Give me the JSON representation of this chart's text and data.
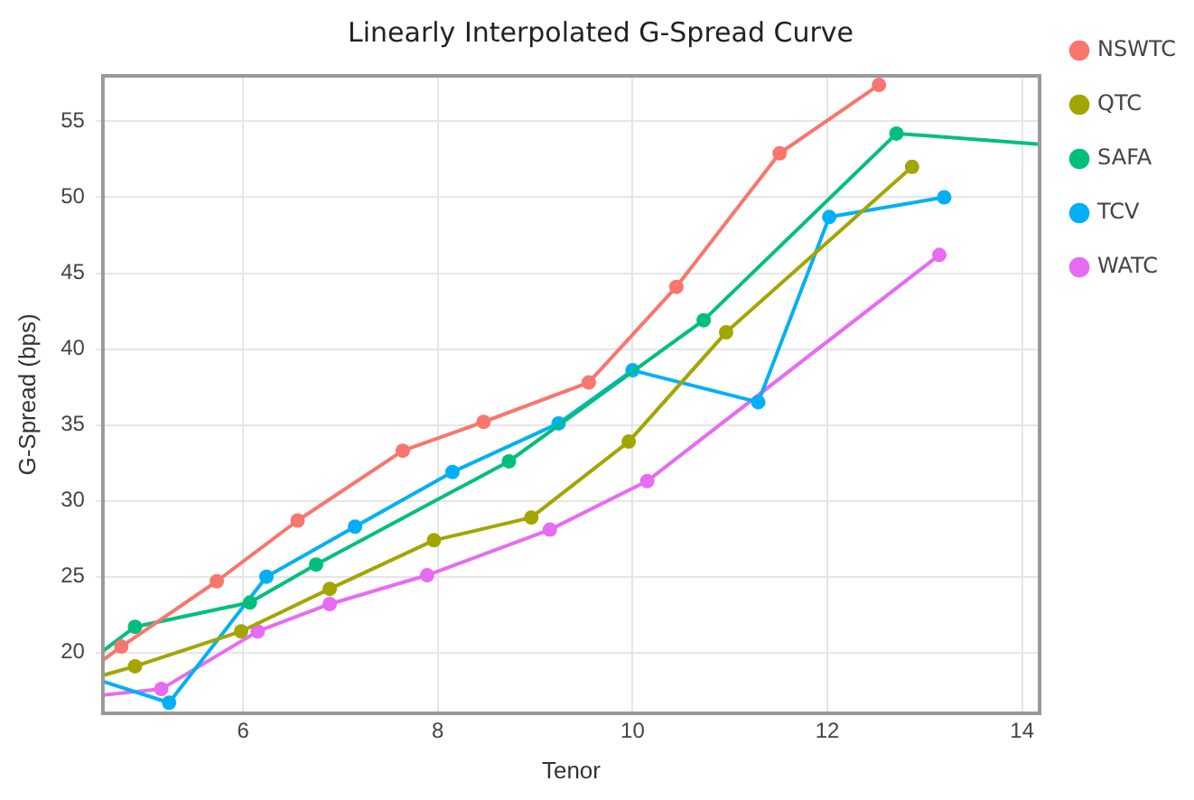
{
  "chart_data": {
    "type": "line",
    "title": "Linearly Interpolated G-Spread Curve",
    "xlabel": "Tenor",
    "ylabel": "G-Spread (bps)",
    "xlim": [
      4.56,
      14.18
    ],
    "xticks": [
      6,
      8,
      10,
      12,
      14
    ],
    "ylim": [
      16,
      58
    ],
    "yticks": [
      20,
      25,
      30,
      35,
      40,
      45,
      50,
      55
    ],
    "grid": true,
    "legend": "right",
    "marker": "circle",
    "series": [
      {
        "name": "NSWTC",
        "color": "#f8766d",
        "x": [
          4.56,
          4.75,
          5.73,
          6.56,
          7.64,
          8.47,
          9.55,
          10.45,
          11.51,
          12.53
        ],
        "values": [
          19.5,
          20.4,
          24.7,
          28.7,
          33.3,
          35.2,
          37.8,
          44.1,
          52.9,
          57.4
        ]
      },
      {
        "name": "QTC",
        "color": "#a3a500",
        "x": [
          4.56,
          4.89,
          5.98,
          6.89,
          7.96,
          8.96,
          9.96,
          10.96,
          12.87
        ],
        "values": [
          18.5,
          19.1,
          21.4,
          24.2,
          27.4,
          28.9,
          33.9,
          41.1,
          52.0
        ]
      },
      {
        "name": "SAFA",
        "color": "#00bf7d",
        "x": [
          4.56,
          4.89,
          6.07,
          6.75,
          8.73,
          10.73,
          12.71,
          14.18
        ],
        "values": [
          20.1,
          21.7,
          23.3,
          25.8,
          32.6,
          41.9,
          54.2,
          53.5
        ]
      },
      {
        "name": "TCV",
        "color": "#00b0f6",
        "x": [
          4.56,
          5.24,
          6.24,
          7.15,
          8.15,
          9.24,
          10.0,
          11.29,
          12.02,
          13.2
        ],
        "values": [
          18.1,
          16.7,
          25.0,
          28.3,
          31.9,
          35.1,
          38.6,
          36.5,
          48.7,
          50.0
        ]
      },
      {
        "name": "WATC",
        "color": "#e76bf3",
        "x": [
          4.56,
          5.16,
          6.15,
          6.89,
          7.89,
          9.15,
          10.15,
          13.15
        ],
        "values": [
          17.2,
          17.6,
          21.4,
          23.2,
          25.1,
          28.1,
          31.3,
          46.2
        ]
      }
    ]
  }
}
